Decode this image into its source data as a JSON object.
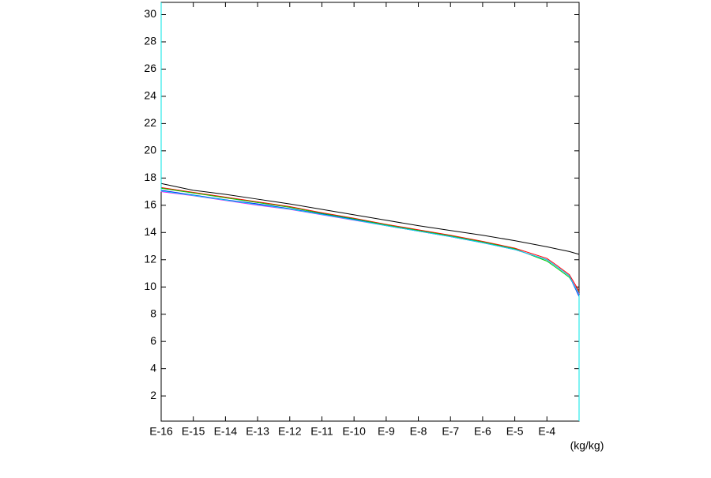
{
  "chart_data": {
    "type": "line",
    "x_label": "(kg/kg)",
    "xlim": [
      1e-16,
      0.001
    ],
    "xlog": true,
    "xticks": [
      {
        "value": 1e-16,
        "label": "E-16"
      },
      {
        "value": 1e-15,
        "label": "E-15"
      },
      {
        "value": 1e-14,
        "label": "E-14"
      },
      {
        "value": 1e-13,
        "label": "E-13"
      },
      {
        "value": 1e-12,
        "label": "E-12"
      },
      {
        "value": 1e-11,
        "label": "E-11"
      },
      {
        "value": 1e-10,
        "label": "E-10"
      },
      {
        "value": 1e-09,
        "label": "E-9"
      },
      {
        "value": 1e-08,
        "label": "E-8"
      },
      {
        "value": 1e-07,
        "label": "E-7"
      },
      {
        "value": 1e-06,
        "label": "E-6"
      },
      {
        "value": 1e-05,
        "label": "E-5"
      },
      {
        "value": 0.0001,
        "label": "E-4"
      }
    ],
    "ylim": [
      0.15,
      30.9
    ],
    "yticks": [
      2,
      4,
      6,
      8,
      10,
      12,
      14,
      16,
      18,
      20,
      22,
      24,
      26,
      28,
      30
    ],
    "series": [
      {
        "color": "#000000",
        "x": [
          1e-16,
          1e-15,
          1e-14,
          1e-13,
          1e-12,
          1e-11,
          1e-10,
          1e-09,
          1e-08,
          1e-07,
          1e-06,
          1e-05,
          0.0001,
          0.0002,
          0.0005,
          0.001
        ],
        "values": [
          17.6,
          17.1,
          16.8,
          16.45,
          16.1,
          15.7,
          15.3,
          14.9,
          14.5,
          14.15,
          13.8,
          13.4,
          12.95,
          12.8,
          12.6,
          12.4
        ]
      },
      {
        "color": "#ff0000",
        "x": [
          1e-16,
          1e-15,
          1e-14,
          1e-13,
          1e-12,
          1e-11,
          1e-10,
          1e-09,
          1e-08,
          1e-07,
          1e-06,
          1e-05,
          0.0001,
          0.0002,
          0.0005,
          0.001
        ],
        "values": [
          17.3,
          16.95,
          16.6,
          16.25,
          15.9,
          15.45,
          15.05,
          14.6,
          14.2,
          13.8,
          13.35,
          12.85,
          12.1,
          11.6,
          10.9,
          9.7
        ]
      },
      {
        "color": "#00cc00",
        "x": [
          1e-16,
          1e-16,
          1e-15,
          1e-14,
          1e-13,
          1e-12,
          1e-11,
          1e-10,
          1e-09,
          1e-08,
          1e-07,
          1e-06,
          1e-05,
          0.0001,
          0.0002,
          0.0005,
          0.001
        ],
        "values": [
          24.5,
          17.25,
          16.9,
          16.55,
          16.2,
          15.85,
          15.4,
          15.0,
          14.55,
          14.15,
          13.75,
          13.3,
          12.8,
          11.9,
          11.4,
          10.7,
          9.6
        ]
      },
      {
        "color": "#0000ff",
        "x": [
          1e-16,
          1e-15,
          1e-14,
          1e-13,
          1e-12,
          1e-11,
          1e-10,
          1e-09,
          1e-08,
          1e-07,
          1e-06,
          1e-05,
          0.0001,
          0.0002,
          0.0005,
          0.001
        ],
        "values": [
          17.1,
          16.75,
          16.4,
          16.1,
          15.75,
          15.35,
          14.95,
          14.5,
          14.1,
          13.7,
          13.25,
          12.75,
          12.0,
          11.5,
          10.8,
          9.3
        ]
      },
      {
        "color": "#ff00ff",
        "x": [
          1e-16,
          1e-16,
          1e-15,
          1e-14,
          1e-13,
          1e-12,
          1e-11,
          1e-10,
          1e-09,
          1e-08,
          1e-07,
          1e-06,
          1e-05,
          0.0001,
          0.0002,
          0.0005,
          0.001
        ],
        "values": [
          27.5,
          17.0,
          16.7,
          16.35,
          16.0,
          15.7,
          15.3,
          14.9,
          14.5,
          14.1,
          13.7,
          13.25,
          12.75,
          12.0,
          11.5,
          10.8,
          9.5
        ]
      },
      {
        "color": "#00e5e5",
        "x": [
          1e-16,
          1e-16,
          1e-15,
          1e-14,
          1e-13,
          1e-12,
          1e-11,
          1e-10,
          1e-09,
          1e-08,
          1e-07,
          1e-06,
          1e-05,
          0.0001,
          0.0002,
          0.0005,
          0.001,
          0.001
        ],
        "values": [
          30.9,
          17.05,
          16.72,
          16.38,
          16.05,
          15.72,
          15.32,
          14.92,
          14.5,
          14.1,
          13.7,
          13.25,
          12.75,
          12.0,
          11.5,
          10.8,
          9.4,
          0.15
        ]
      }
    ]
  }
}
